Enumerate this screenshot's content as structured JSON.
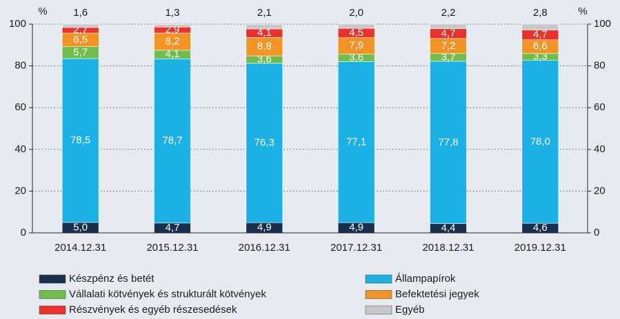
{
  "chart_data": {
    "type": "stacked_bar",
    "y_axis_label": "%",
    "categories": [
      "2014.12.31",
      "2015.12.31",
      "2016.12.31",
      "2017.12.31",
      "2018.12.31",
      "2019.12.31"
    ],
    "series": [
      {
        "name": "Készpénz és betét",
        "color": "#17304f",
        "values": [
          5.0,
          4.7,
          4.9,
          4.9,
          4.4,
          4.6
        ],
        "value_labels": [
          "5,0",
          "4,7",
          "4,9",
          "4,9",
          "4,4",
          "4,6"
        ]
      },
      {
        "name": "Állampapírok",
        "color": "#1bb0e6",
        "values": [
          78.5,
          78.7,
          76.3,
          77.1,
          77.8,
          78.0
        ],
        "value_labels": [
          "78,5",
          "78,7",
          "76,3",
          "77,1",
          "77,8",
          "78,0"
        ]
      },
      {
        "name": "Vállalati kötvények és strukturált kötvények",
        "color": "#6fbe4c",
        "values": [
          5.7,
          4.1,
          3.6,
          3.6,
          3.7,
          3.3
        ],
        "value_labels": [
          "5,7",
          "4,1",
          "3,6",
          "3,6",
          "3,7",
          "3,3"
        ]
      },
      {
        "name": "Befektetési jegyek",
        "color": "#f39323",
        "values": [
          6.5,
          8.2,
          8.8,
          7.9,
          7.2,
          6.6
        ],
        "value_labels": [
          "6,5",
          "8,2",
          "8,8",
          "7,9",
          "7,2",
          "6,6"
        ]
      },
      {
        "name": "Részvények és egyéb részesedések",
        "color": "#e8322b",
        "values": [
          2.7,
          2.9,
          4.1,
          4.5,
          4.7,
          4.7
        ],
        "value_labels": [
          "2,7",
          "2,9",
          "4,1",
          "4,5",
          "4,7",
          "4,7"
        ]
      },
      {
        "name": "Egyéb",
        "color": "#c8c8c8",
        "values": [
          1.6,
          1.3,
          2.1,
          2.0,
          2.2,
          2.8
        ],
        "value_labels": [
          "1,6",
          "1,3",
          "2,1",
          "2,0",
          "2,2",
          "2,8"
        ]
      }
    ],
    "ylim": [
      0,
      100
    ],
    "yticks": [
      0,
      20,
      40,
      60,
      80,
      100
    ],
    "grid": true,
    "right_axis": true
  }
}
